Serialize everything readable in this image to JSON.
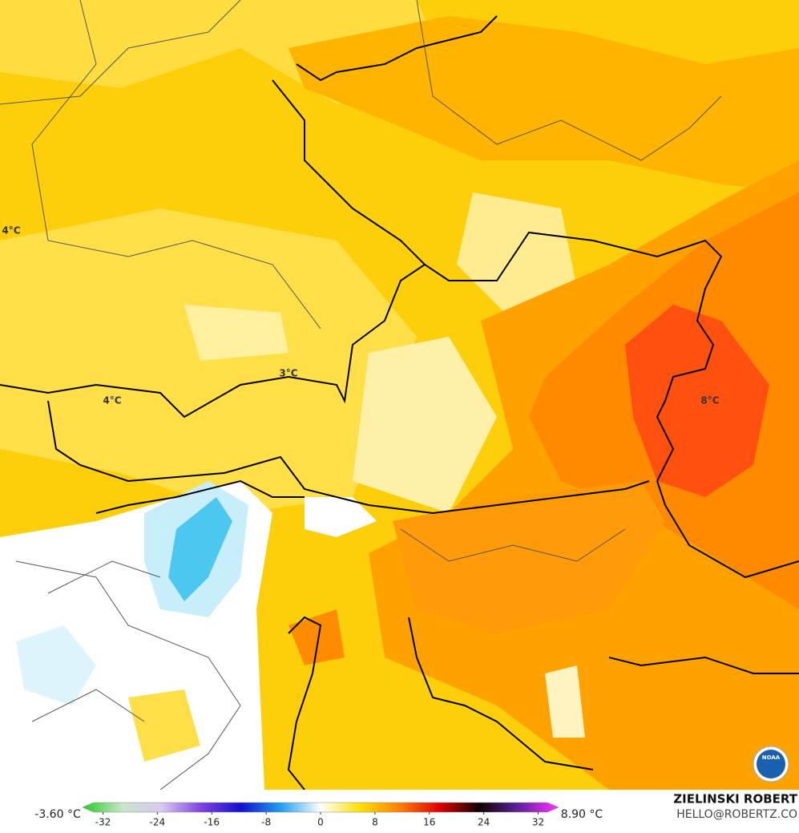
{
  "map_labels": [
    "4°C",
    "3°C",
    "4°C",
    "8°C"
  ],
  "legend": {
    "min_label": "-3.60 °C",
    "max_label": "8.90 °C",
    "range": [
      -35,
      35
    ],
    "ticks": [
      -32,
      -24,
      -16,
      -8,
      0,
      8,
      16,
      24,
      32
    ],
    "colors": [
      "#22cc22",
      "#c8e6c8",
      "#d8c8f0",
      "#8040e0",
      "#1010d0",
      "#20a0f0",
      "#ffffff",
      "#ffe000",
      "#ff8000",
      "#e00000",
      "#100000",
      "#6020a0",
      "#ff30ff"
    ]
  },
  "credits": {
    "author": "ZIELINSKI ROBERT",
    "email": "HELLO@ROBERTZ.CO",
    "logo": "NOAA"
  }
}
